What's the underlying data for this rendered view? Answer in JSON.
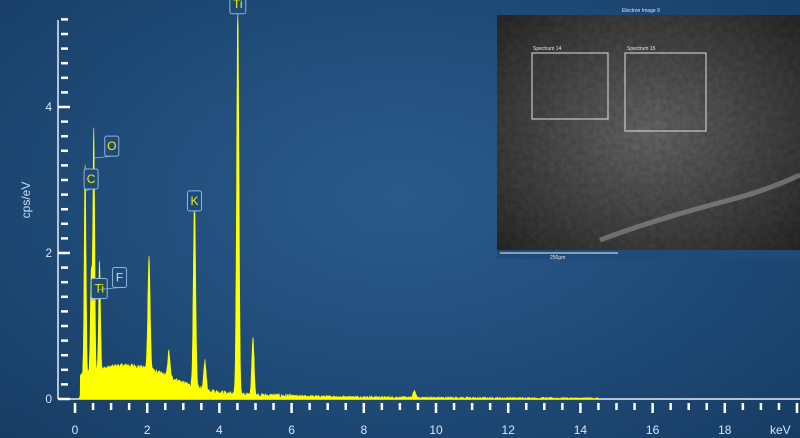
{
  "chart_data": {
    "type": "line",
    "xlabel": "keV",
    "ylabel": "cps/eV",
    "xlim": [
      0,
      20
    ],
    "ylim": [
      0,
      5.4
    ],
    "x_ticks": [
      "0",
      "2",
      "4",
      "6",
      "8",
      "10",
      "12",
      "14",
      "16",
      "18"
    ],
    "y_ticks": [
      "0",
      "2",
      "4"
    ],
    "grid": false,
    "series_color": "#ffff00",
    "peaks": [
      {
        "label": "C",
        "x": 0.28,
        "y": 2.85
      },
      {
        "label": "O",
        "x": 0.52,
        "y": 3.3
      },
      {
        "label": "Ti",
        "x": 0.45,
        "y": 1.35
      },
      {
        "label": "F",
        "x": 0.68,
        "y": 1.5
      },
      {
        "label": "K",
        "x": 3.31,
        "y": 2.55
      },
      {
        "label": "Ti",
        "x": 4.51,
        "y": 5.25
      }
    ],
    "unlabeled_peaks": [
      {
        "x": 2.05,
        "y": 1.55
      },
      {
        "x": 3.6,
        "y": 0.4
      },
      {
        "x": 4.93,
        "y": 0.78
      },
      {
        "x": 2.6,
        "y": 0.35
      },
      {
        "x": 9.4,
        "y": 0.1
      }
    ]
  },
  "inset": {
    "title": "Electron Image 9",
    "region_labels": [
      "Spectrum 14",
      "Spectrum 15"
    ],
    "scale_bar": "250µm"
  }
}
